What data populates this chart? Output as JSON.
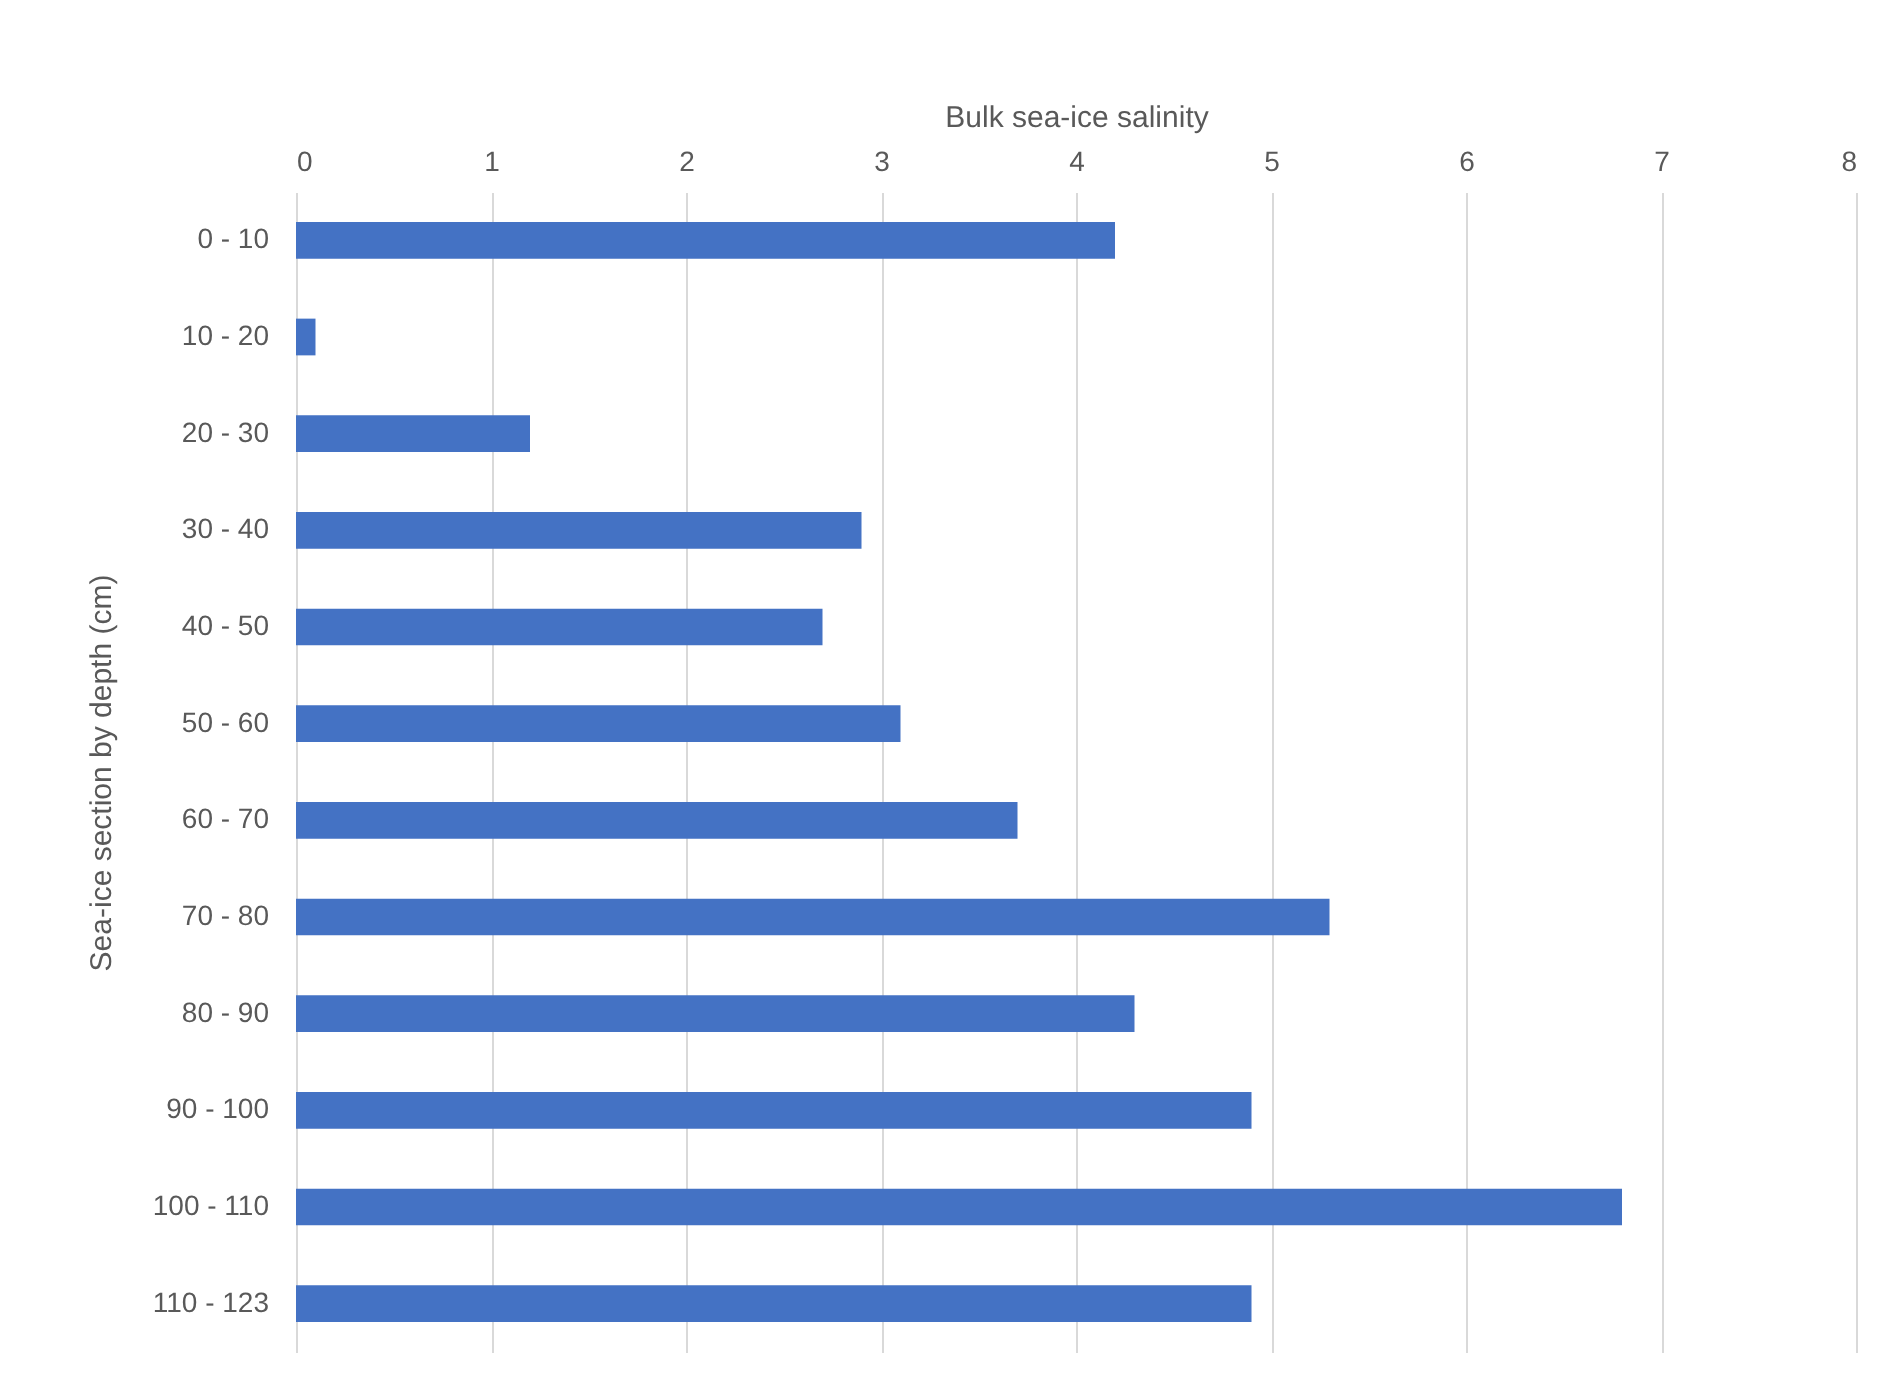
{
  "chart_data": {
    "type": "bar",
    "orientation": "horizontal",
    "xlabel": "Bulk sea-ice salinity",
    "ylabel": "Sea-ice section by depth (cm)",
    "categories": [
      "0 - 10",
      "10 - 20",
      "20 - 30",
      "30 - 40",
      "40 - 50",
      "50 - 60",
      "60 - 70",
      "70 - 80",
      "80 - 90",
      "90 - 100",
      "100 - 110",
      "110 - 123"
    ],
    "values": [
      4.2,
      0.1,
      1.2,
      2.9,
      2.7,
      3.1,
      3.7,
      5.3,
      4.3,
      4.9,
      6.8,
      4.9
    ],
    "color": "#4472c4",
    "xlim": [
      0,
      8
    ],
    "xticks": [
      0,
      1,
      2,
      3,
      4,
      5,
      6,
      7,
      8
    ],
    "grid": "x"
  }
}
